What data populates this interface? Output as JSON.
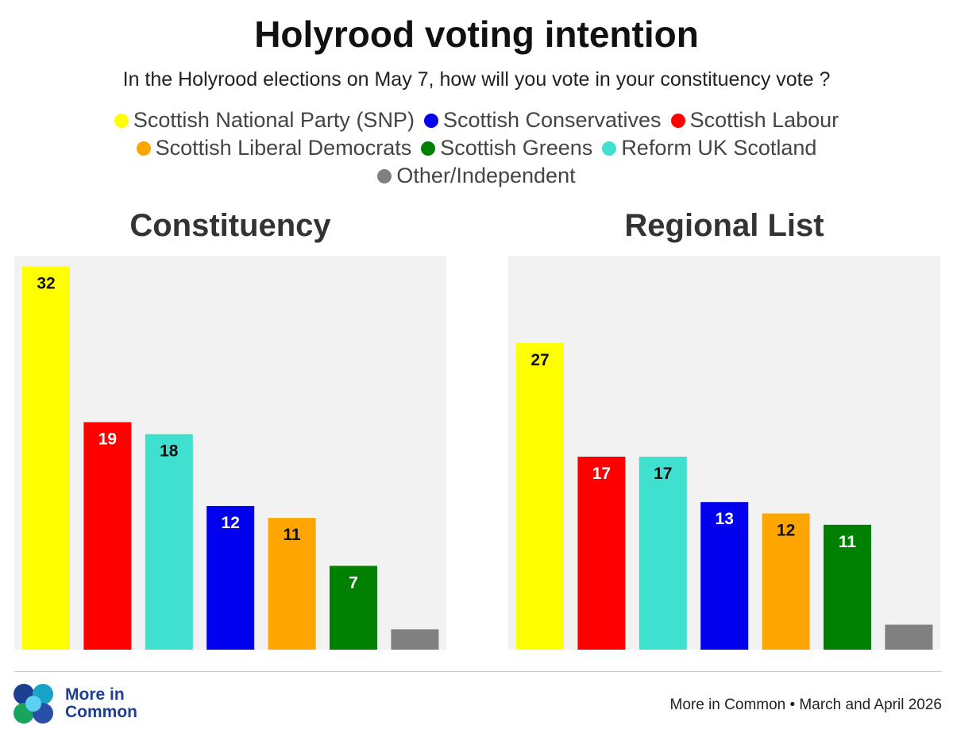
{
  "title": "Holyrood voting intention",
  "subtitle": "In the Holyrood elections on May 7, how will you vote in your constituency vote ?",
  "legend": [
    {
      "label": "Scottish National Party (SNP)",
      "color": "#ffff00"
    },
    {
      "label": "Scottish Conservatives",
      "color": "#0000ee"
    },
    {
      "label": "Scottish Labour",
      "color": "#ff0000"
    },
    {
      "label": "Scottish Liberal Democrats",
      "color": "#ffa500"
    },
    {
      "label": "Scottish Greens",
      "color": "#008000"
    },
    {
      "label": "Reform UK Scotland",
      "color": "#40e0d0"
    },
    {
      "label": "Other/Independent",
      "color": "#808080"
    }
  ],
  "chart_data": [
    {
      "type": "bar",
      "title": "Constituency",
      "categories": [
        "Scottish National Party (SNP)",
        "Scottish Labour",
        "Reform UK Scotland",
        "Scottish Conservatives",
        "Scottish Liberal Democrats",
        "Scottish Greens",
        "Other/Independent"
      ],
      "values": [
        32,
        19,
        18,
        12,
        11,
        7,
        1.7
      ],
      "labels": [
        "32",
        "19",
        "18",
        "12",
        "11",
        "7",
        ""
      ],
      "colors": [
        "#ffff00",
        "#ff0000",
        "#40e0d0",
        "#0000ee",
        "#ffa500",
        "#008000",
        "#808080"
      ],
      "label_colors": [
        "#111111",
        "#ffffff",
        "#111111",
        "#ffffff",
        "#111111",
        "#ffffff",
        "#ffffff"
      ],
      "ylim": [
        0,
        32.9
      ],
      "grid": false
    },
    {
      "type": "bar",
      "title": "Regional List",
      "categories": [
        "Scottish National Party (SNP)",
        "Scottish Labour",
        "Reform UK Scotland",
        "Scottish Conservatives",
        "Scottish Liberal Democrats",
        "Scottish Greens",
        "Other/Independent"
      ],
      "values": [
        27,
        17,
        17,
        13,
        12,
        11,
        2.2
      ],
      "labels": [
        "27",
        "17",
        "17",
        "13",
        "12",
        "11",
        ""
      ],
      "colors": [
        "#ffff00",
        "#ff0000",
        "#40e0d0",
        "#0000ee",
        "#ffa500",
        "#008000",
        "#808080"
      ],
      "label_colors": [
        "#111111",
        "#ffffff",
        "#111111",
        "#ffffff",
        "#111111",
        "#ffffff",
        "#ffffff"
      ],
      "ylim": [
        0,
        34.7
      ],
      "grid": false
    }
  ],
  "footer": {
    "logo_line1": "More in",
    "logo_line2": "Common",
    "source": "More in Common • March and April 2026"
  }
}
